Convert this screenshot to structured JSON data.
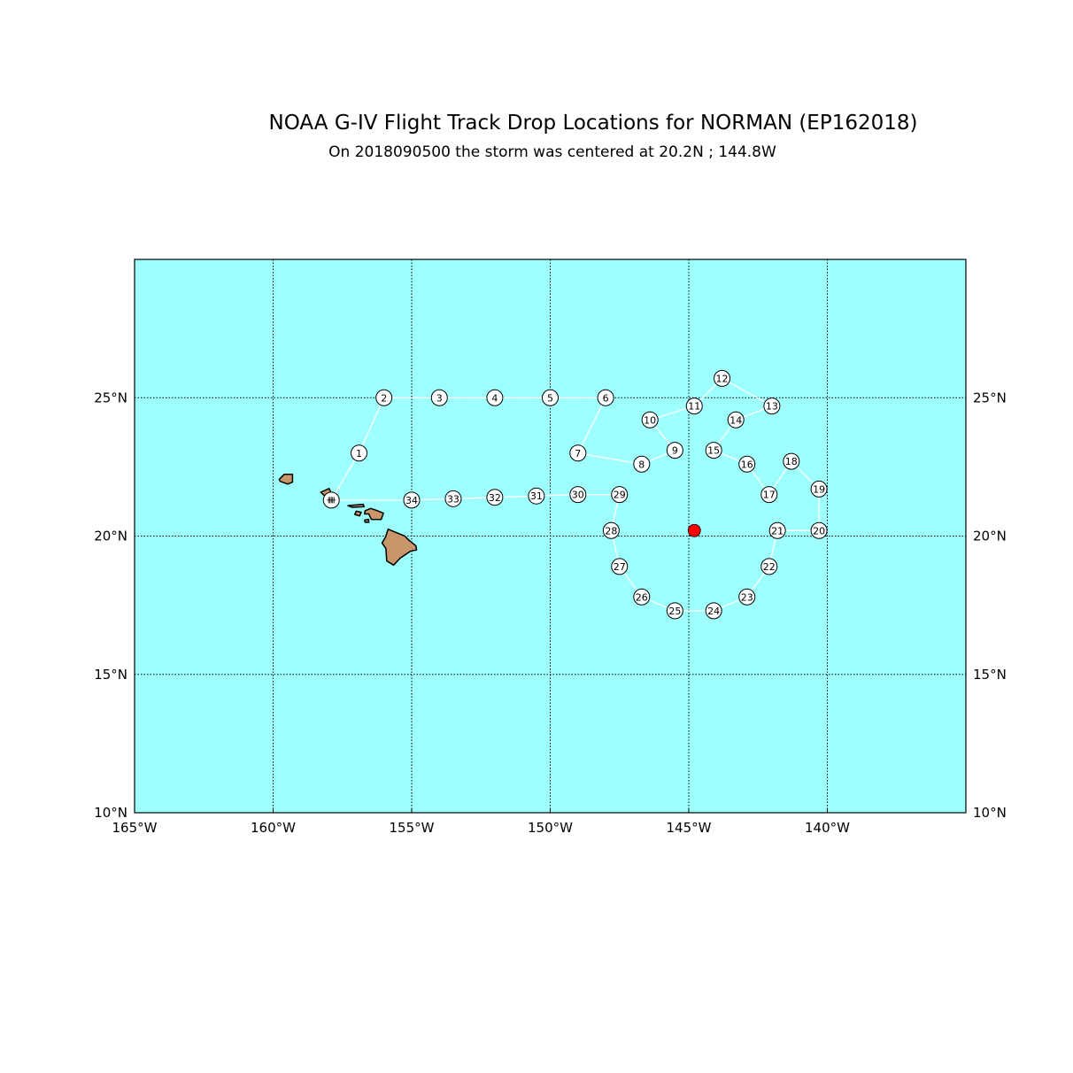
{
  "title": "NOAA G-IV Flight Track Drop Locations for NORMAN (EP162018)",
  "subtitle": "On 2018090500 the storm was centered at 20.2N ; 144.8W",
  "map": {
    "lon_range": [
      -165,
      -135
    ],
    "lat_range": [
      10,
      30
    ],
    "x_ticks": [
      {
        "lon": -165,
        "label": "165°W"
      },
      {
        "lon": -160,
        "label": "160°W"
      },
      {
        "lon": -155,
        "label": "155°W"
      },
      {
        "lon": -150,
        "label": "150°W"
      },
      {
        "lon": -145,
        "label": "145°W"
      },
      {
        "lon": -140,
        "label": "140°W"
      }
    ],
    "y_ticks": [
      {
        "lat": 10,
        "label": "10°N"
      },
      {
        "lat": 15,
        "label": "15°N"
      },
      {
        "lat": 20,
        "label": "20°N"
      },
      {
        "lat": 25,
        "label": "25°N"
      }
    ],
    "ocean_color": "#9effff",
    "land_color": "#c8966a",
    "track_color": "#ffffff",
    "storm_color": "#ff0000",
    "grid": true
  },
  "storm_center": {
    "lat": 20.2,
    "lon": -144.8
  },
  "drops": [
    {
      "id": "1",
      "lat": 23.0,
      "lon": -156.9
    },
    {
      "id": "2",
      "lat": 25.0,
      "lon": -156.0
    },
    {
      "id": "3",
      "lat": 25.0,
      "lon": -154.0
    },
    {
      "id": "4",
      "lat": 25.0,
      "lon": -152.0
    },
    {
      "id": "5",
      "lat": 25.0,
      "lon": -150.0
    },
    {
      "id": "6",
      "lat": 25.0,
      "lon": -148.0
    },
    {
      "id": "7",
      "lat": 23.0,
      "lon": -149.0
    },
    {
      "id": "8",
      "lat": 22.6,
      "lon": -146.7
    },
    {
      "id": "9",
      "lat": 23.1,
      "lon": -145.5
    },
    {
      "id": "10",
      "lat": 24.2,
      "lon": -146.4
    },
    {
      "id": "11",
      "lat": 24.7,
      "lon": -144.8
    },
    {
      "id": "12",
      "lat": 25.7,
      "lon": -143.8
    },
    {
      "id": "13",
      "lat": 24.7,
      "lon": -142.0
    },
    {
      "id": "14",
      "lat": 24.2,
      "lon": -143.3
    },
    {
      "id": "15",
      "lat": 23.1,
      "lon": -144.1
    },
    {
      "id": "16",
      "lat": 22.6,
      "lon": -142.9
    },
    {
      "id": "17",
      "lat": 21.5,
      "lon": -142.1
    },
    {
      "id": "18",
      "lat": 22.7,
      "lon": -141.3
    },
    {
      "id": "19",
      "lat": 21.7,
      "lon": -140.3
    },
    {
      "id": "20",
      "lat": 20.2,
      "lon": -140.3
    },
    {
      "id": "21",
      "lat": 20.2,
      "lon": -141.8
    },
    {
      "id": "22",
      "lat": 18.9,
      "lon": -142.1
    },
    {
      "id": "23",
      "lat": 17.8,
      "lon": -142.9
    },
    {
      "id": "24",
      "lat": 17.3,
      "lon": -144.1
    },
    {
      "id": "25",
      "lat": 17.3,
      "lon": -145.5
    },
    {
      "id": "26",
      "lat": 17.8,
      "lon": -146.7
    },
    {
      "id": "27",
      "lat": 18.9,
      "lon": -147.5
    },
    {
      "id": "28",
      "lat": 20.2,
      "lon": -147.8
    },
    {
      "id": "29",
      "lat": 21.5,
      "lon": -147.5
    },
    {
      "id": "30",
      "lat": 21.5,
      "lon": -149.0
    },
    {
      "id": "31",
      "lat": 21.45,
      "lon": -150.5
    },
    {
      "id": "32",
      "lat": 21.4,
      "lon": -152.0
    },
    {
      "id": "33",
      "lat": 21.35,
      "lon": -153.5
    },
    {
      "id": "34",
      "lat": 21.3,
      "lon": -155.0
    }
  ],
  "airport": {
    "name": "hickam",
    "lat": 21.3,
    "lon": -157.9
  },
  "islands": [
    {
      "name": "kauai",
      "points": [
        [
          -159.78,
          22.05
        ],
        [
          -159.6,
          22.23
        ],
        [
          -159.3,
          22.23
        ],
        [
          -159.3,
          21.95
        ],
        [
          -159.48,
          21.88
        ],
        [
          -159.75,
          21.98
        ]
      ]
    },
    {
      "name": "oahu",
      "points": [
        [
          -158.28,
          21.58
        ],
        [
          -157.98,
          21.72
        ],
        [
          -157.82,
          21.4
        ],
        [
          -157.72,
          21.26
        ],
        [
          -158.0,
          21.3
        ],
        [
          -158.1,
          21.42
        ]
      ]
    },
    {
      "name": "molokai",
      "points": [
        [
          -157.3,
          21.1
        ],
        [
          -156.75,
          21.15
        ],
        [
          -156.72,
          21.06
        ],
        [
          -157.15,
          21.04
        ]
      ]
    },
    {
      "name": "lanai",
      "points": [
        [
          -157.0,
          20.9
        ],
        [
          -156.82,
          20.86
        ],
        [
          -156.88,
          20.73
        ],
        [
          -157.05,
          20.78
        ]
      ]
    },
    {
      "name": "maui",
      "points": [
        [
          -156.68,
          20.92
        ],
        [
          -156.48,
          21.0
        ],
        [
          -156.33,
          20.95
        ],
        [
          -156.02,
          20.83
        ],
        [
          -156.1,
          20.6
        ],
        [
          -156.45,
          20.6
        ],
        [
          -156.55,
          20.8
        ],
        [
          -156.7,
          20.8
        ]
      ]
    },
    {
      "name": "kahoolawe",
      "points": [
        [
          -156.7,
          20.58
        ],
        [
          -156.55,
          20.6
        ],
        [
          -156.55,
          20.5
        ],
        [
          -156.68,
          20.5
        ]
      ]
    },
    {
      "name": "hawaii",
      "points": [
        [
          -155.85,
          20.25
        ],
        [
          -155.73,
          20.2
        ],
        [
          -155.25,
          20.0
        ],
        [
          -155.1,
          19.85
        ],
        [
          -154.85,
          19.65
        ],
        [
          -154.82,
          19.5
        ],
        [
          -155.05,
          19.45
        ],
        [
          -155.42,
          19.2
        ],
        [
          -155.65,
          18.95
        ],
        [
          -155.9,
          19.1
        ],
        [
          -155.93,
          19.55
        ],
        [
          -156.07,
          19.75
        ],
        [
          -155.95,
          19.95
        ]
      ]
    }
  ]
}
